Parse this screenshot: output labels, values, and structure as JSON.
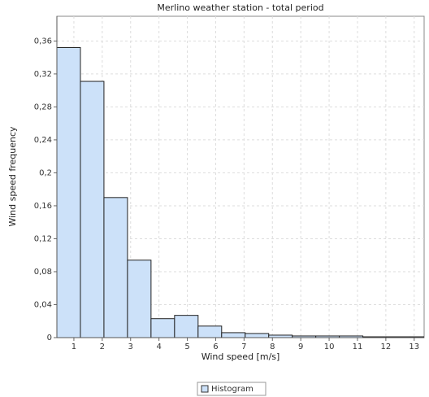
{
  "chart_data": {
    "type": "histogram",
    "title": "Merlino weather station - total period",
    "x_label": "Wind speed [m/s]",
    "y_label": "Wind speed frequency",
    "bins": [
      0.4,
      1.23,
      2.06,
      2.89,
      3.72,
      4.55,
      5.38,
      6.21,
      7.04,
      7.87,
      8.7,
      9.53,
      10.36,
      11.19,
      12.02,
      12.85,
      13.68
    ],
    "series": [
      {
        "name": "Histogram",
        "color": "#cce1f9",
        "values": [
          0.352,
          0.311,
          0.17,
          0.094,
          0.023,
          0.027,
          0.014,
          0.006,
          0.005,
          0.003,
          0.002,
          0.002,
          0.002,
          0.001,
          0.001,
          0.001
        ]
      }
    ],
    "xlim": [
      0.4,
      13.35
    ],
    "ylim": [
      0,
      0.39
    ],
    "xticks": [
      1,
      2,
      3,
      4,
      5,
      6,
      7,
      8,
      9,
      10,
      11,
      12,
      13
    ],
    "yticks": [
      0,
      {
        "value": 0.04,
        "label": "0,04"
      },
      {
        "value": 0.08,
        "label": "0,08"
      },
      {
        "value": 0.12,
        "label": "0,12"
      },
      {
        "value": 0.16,
        "label": "0,16"
      },
      {
        "value": 0.2,
        "label": "0,2"
      },
      {
        "value": 0.24,
        "label": "0,24"
      },
      {
        "value": 0.28,
        "label": "0,28"
      },
      {
        "value": 0.32,
        "label": "0,32"
      },
      {
        "value": 0.36,
        "label": "0,36"
      }
    ],
    "grid": true,
    "legend": "bottom"
  }
}
